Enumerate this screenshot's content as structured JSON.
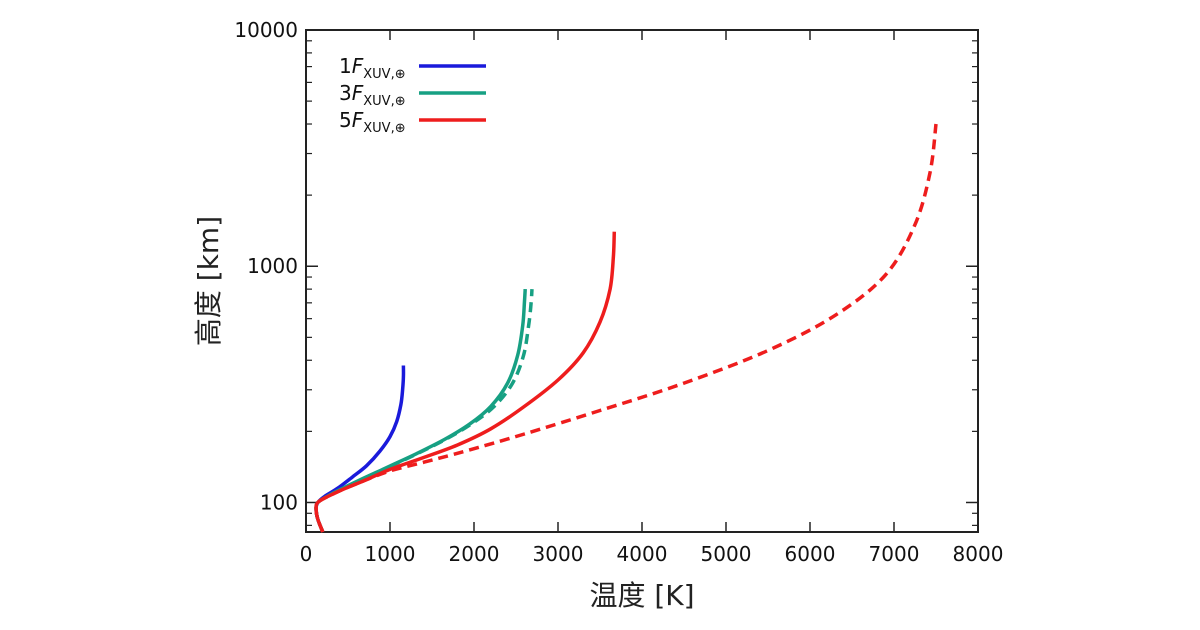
{
  "chart_data": {
    "type": "line",
    "xlabel": "温度 [K]",
    "ylabel": "高度 [km]",
    "xlim": [
      0,
      8000
    ],
    "ylim": [
      75,
      10000
    ],
    "yscale": "log",
    "grid": false,
    "legend_position": "top-left",
    "x_ticks": [
      0,
      1000,
      2000,
      3000,
      4000,
      5000,
      6000,
      7000,
      8000
    ],
    "x_tick_labels": [
      "0",
      "1000",
      "2000",
      "3000",
      "4000",
      "5000",
      "6000",
      "7000",
      "8000"
    ],
    "y_ticks": [
      100,
      1000,
      10000
    ],
    "y_tick_labels": [
      "100",
      "1000",
      "10000"
    ],
    "legend": [
      {
        "prefix": "1",
        "symbol": "F",
        "sub": "XUV,⊕",
        "color": "#1a1adb"
      },
      {
        "prefix": "3",
        "symbol": "F",
        "sub": "XUV,⊕",
        "color": "#17a083"
      },
      {
        "prefix": "5",
        "symbol": "F",
        "sub": "XUV,⊕",
        "color": "#ee1d1d"
      }
    ],
    "series": [
      {
        "color": "#1a1adb",
        "dash": false,
        "points": [
          [
            200,
            75
          ],
          [
            140,
            85
          ],
          [
            120,
            94
          ],
          [
            140,
            100
          ],
          [
            220,
            106
          ],
          [
            380,
            115
          ],
          [
            550,
            128
          ],
          [
            720,
            143
          ],
          [
            880,
            165
          ],
          [
            1000,
            190
          ],
          [
            1080,
            220
          ],
          [
            1130,
            260
          ],
          [
            1150,
            300
          ],
          [
            1160,
            340
          ],
          [
            1160,
            380
          ]
        ]
      },
      {
        "color": "#17a083",
        "dash": false,
        "points": [
          [
            200,
            75
          ],
          [
            140,
            85
          ],
          [
            120,
            94
          ],
          [
            140,
            100
          ],
          [
            250,
            106
          ],
          [
            420,
            114
          ],
          [
            650,
            125
          ],
          [
            950,
            140
          ],
          [
            1300,
            160
          ],
          [
            1650,
            185
          ],
          [
            1950,
            215
          ],
          [
            2200,
            255
          ],
          [
            2400,
            320
          ],
          [
            2520,
            420
          ],
          [
            2580,
            560
          ],
          [
            2600,
            700
          ],
          [
            2610,
            800
          ]
        ]
      },
      {
        "color": "#17a083",
        "dash": true,
        "points": [
          [
            200,
            75
          ],
          [
            140,
            85
          ],
          [
            120,
            94
          ],
          [
            140,
            100
          ],
          [
            250,
            106
          ],
          [
            420,
            114
          ],
          [
            660,
            125
          ],
          [
            960,
            140
          ],
          [
            1310,
            160
          ],
          [
            1660,
            185
          ],
          [
            1970,
            215
          ],
          [
            2240,
            255
          ],
          [
            2460,
            320
          ],
          [
            2590,
            420
          ],
          [
            2650,
            560
          ],
          [
            2680,
            700
          ],
          [
            2690,
            800
          ]
        ]
      },
      {
        "color": "#ee1d1d",
        "dash": false,
        "points": [
          [
            200,
            75
          ],
          [
            140,
            85
          ],
          [
            120,
            94
          ],
          [
            140,
            100
          ],
          [
            260,
            106
          ],
          [
            450,
            114
          ],
          [
            700,
            124
          ],
          [
            1000,
            138
          ],
          [
            1400,
            155
          ],
          [
            1800,
            175
          ],
          [
            2200,
            205
          ],
          [
            2600,
            255
          ],
          [
            3000,
            330
          ],
          [
            3300,
            430
          ],
          [
            3500,
            580
          ],
          [
            3620,
            800
          ],
          [
            3660,
            1100
          ],
          [
            3670,
            1400
          ]
        ]
      },
      {
        "color": "#ee1d1d",
        "dash": true,
        "points": [
          [
            200,
            75
          ],
          [
            140,
            85
          ],
          [
            120,
            94
          ],
          [
            140,
            100
          ],
          [
            260,
            106
          ],
          [
            450,
            114
          ],
          [
            700,
            124
          ],
          [
            1000,
            136
          ],
          [
            1400,
            148
          ],
          [
            1900,
            165
          ],
          [
            2600,
            195
          ],
          [
            3500,
            245
          ],
          [
            4500,
            320
          ],
          [
            5500,
            440
          ],
          [
            6300,
            620
          ],
          [
            6900,
            920
          ],
          [
            7250,
            1500
          ],
          [
            7430,
            2500
          ],
          [
            7500,
            4000
          ]
        ]
      }
    ]
  }
}
